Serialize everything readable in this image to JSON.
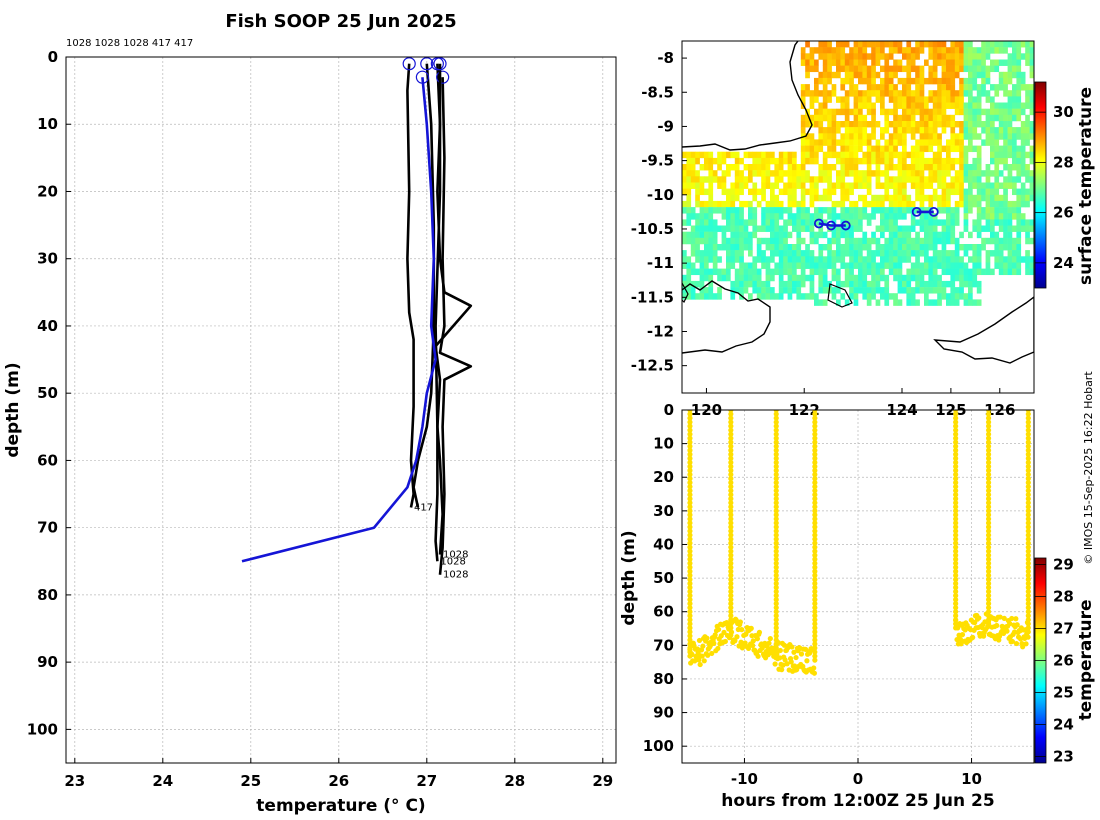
{
  "chart_data": [
    {
      "type": "line",
      "title": "Fish SOOP 25 Jun 2025",
      "xlabel": "temperature (° C)",
      "ylabel": "depth (m)",
      "xlim": [
        22.9,
        29.15
      ],
      "ylim": [
        105,
        0
      ],
      "xticks": [
        "23",
        "24",
        "25",
        "26",
        "27",
        "28",
        "29"
      ],
      "yticks": [
        "0",
        "10",
        "20",
        "30",
        "40",
        "50",
        "60",
        "70",
        "80",
        "90",
        "100"
      ],
      "top_labels": "1028 1028 1028 417 417",
      "grid": true,
      "profile_end_labels": [
        "417",
        "1028",
        "1028",
        "1028"
      ],
      "series": [
        {
          "name": "profile-a",
          "color": "#000000",
          "points": [
            [
              26.8,
              1
            ],
            [
              26.78,
              5
            ],
            [
              26.8,
              20
            ],
            [
              26.78,
              30
            ],
            [
              26.8,
              38
            ],
            [
              26.85,
              42
            ],
            [
              26.85,
              52
            ],
            [
              26.82,
              60
            ],
            [
              26.85,
              65
            ],
            [
              26.82,
              67
            ]
          ]
        },
        {
          "name": "profile-b",
          "color": "#000000",
          "points": [
            [
              27.12,
              1
            ],
            [
              27.15,
              10
            ],
            [
              27.12,
              20
            ],
            [
              27.15,
              30
            ],
            [
              27.2,
              35
            ],
            [
              27.5,
              37
            ],
            [
              27.3,
              40
            ],
            [
              27.1,
              43
            ],
            [
              27.15,
              48
            ],
            [
              27.12,
              55
            ],
            [
              27.15,
              60
            ],
            [
              27.18,
              68
            ],
            [
              27.15,
              74
            ]
          ]
        },
        {
          "name": "profile-c",
          "color": "#000000",
          "points": [
            [
              27.18,
              3
            ],
            [
              27.2,
              15
            ],
            [
              27.18,
              30
            ],
            [
              27.2,
              40
            ],
            [
              27.15,
              44
            ],
            [
              27.5,
              46
            ],
            [
              27.2,
              48
            ],
            [
              27.18,
              55
            ],
            [
              27.2,
              65
            ],
            [
              27.18,
              73
            ],
            [
              27.15,
              77
            ]
          ]
        },
        {
          "name": "profile-d",
          "color": "#000000",
          "points": [
            [
              27.0,
              1
            ],
            [
              27.05,
              10
            ],
            [
              27.08,
              25
            ],
            [
              27.08,
              40
            ],
            [
              27.05,
              50
            ],
            [
              27.0,
              55
            ],
            [
              26.9,
              60
            ],
            [
              26.85,
              64
            ],
            [
              26.9,
              67
            ]
          ]
        },
        {
          "name": "profile-e",
          "color": "#000000",
          "points": [
            [
              27.15,
              1
            ],
            [
              27.15,
              20
            ],
            [
              27.1,
              40
            ],
            [
              27.12,
              55
            ],
            [
              27.12,
              65
            ],
            [
              27.1,
              72
            ],
            [
              27.12,
              75
            ]
          ]
        },
        {
          "name": "profile-blue",
          "color": "#1515d6",
          "points": [
            [
              26.95,
              3
            ],
            [
              27.0,
              10
            ],
            [
              27.05,
              20
            ],
            [
              27.08,
              30
            ],
            [
              27.05,
              40
            ],
            [
              27.1,
              45
            ],
            [
              27.0,
              50
            ],
            [
              26.95,
              55
            ],
            [
              26.88,
              60
            ],
            [
              26.78,
              64
            ],
            [
              26.4,
              70
            ],
            [
              24.9,
              75
            ]
          ]
        }
      ]
    },
    {
      "type": "heatmap",
      "title": "",
      "xlabel": "",
      "ylabel": "",
      "xlim": [
        119.5,
        126.7
      ],
      "ylim": [
        -12.9,
        -7.75
      ],
      "xticks": [
        "120",
        "122",
        "124",
        "125",
        "126"
      ],
      "yticks": [
        "-8",
        "-8.5",
        "-9",
        "-9.5",
        "-10",
        "-10.5",
        "-11",
        "-11.5",
        "-12",
        "-12.5"
      ],
      "colorbar": {
        "label": "surface temperature",
        "range": [
          23,
          31.2
        ],
        "ticks": [
          "24",
          "26",
          "28",
          "30"
        ]
      },
      "tracks": [
        {
          "lon": [
            122.3,
            122.55,
            122.85
          ],
          "lat": [
            -10.42,
            -10.45,
            -10.45
          ]
        },
        {
          "lon": [
            124.3,
            124.65
          ],
          "lat": [
            -10.25,
            -10.25
          ]
        }
      ]
    },
    {
      "type": "scatter",
      "title": "",
      "xlabel": "hours from 12:00Z 25 Jun 25",
      "ylabel": "depth (m)",
      "xlim": [
        -15.5,
        15.5
      ],
      "ylim": [
        105,
        0
      ],
      "xticks": [
        "-10",
        "0",
        "10"
      ],
      "yticks": [
        "0",
        "10",
        "20",
        "30",
        "40",
        "50",
        "60",
        "70",
        "80",
        "90",
        "100"
      ],
      "colorbar": {
        "label": "temperature",
        "range": [
          22.8,
          29.2
        ],
        "ticks": [
          "23",
          "24",
          "25",
          "26",
          "27",
          "28",
          "29"
        ]
      },
      "casts": [
        {
          "t": -14.8,
          "depth": 74,
          "temp": 27.0
        },
        {
          "t": -11.2,
          "depth": 65,
          "temp": 27.0
        },
        {
          "t": -7.2,
          "depth": 73,
          "temp": 27.0
        },
        {
          "t": -3.8,
          "depth": 75,
          "temp": 27.0
        },
        {
          "t": 8.6,
          "depth": 66,
          "temp": 27.0
        },
        {
          "t": 11.5,
          "depth": 64,
          "temp": 27.0
        },
        {
          "t": 15.0,
          "depth": 67,
          "temp": 27.0
        }
      ]
    }
  ],
  "credit": "© IMOS 15-Sep-2025 16:22 Hobart"
}
